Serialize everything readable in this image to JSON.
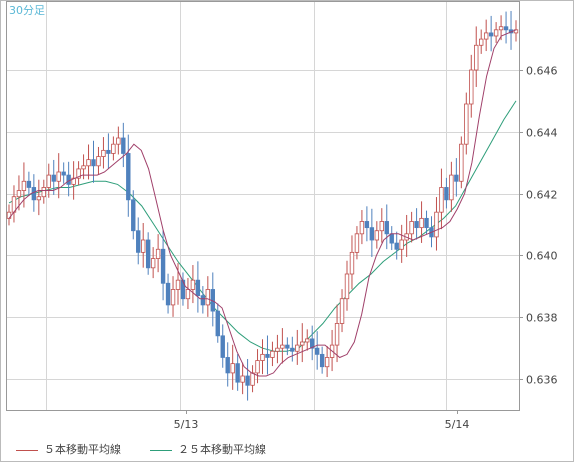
{
  "chart_data": {
    "type": "candlestick",
    "timeframe_label": "30分足",
    "x_tick_labels": [
      "5/13",
      "5/14"
    ],
    "y_ticks": [
      0.636,
      0.638,
      0.64,
      0.642,
      0.644,
      0.646
    ],
    "y_tick_labels": [
      "0.636",
      "0.638",
      "0.640",
      "0.642",
      "0.644",
      "0.646"
    ],
    "ylim": [
      0.635,
      0.6482
    ],
    "grid": true,
    "colors": {
      "up_candle_border": "#c0504d",
      "down_candle_fill": "#4f81bd",
      "ma5": "#a0406a",
      "ma25": "#2e9e7a",
      "grid": "#d6d6d6",
      "axis": "#999999"
    },
    "legend": [
      {
        "name": "５本移動平均線",
        "color": "#a0406a"
      },
      {
        "name": "２５本移動平均線",
        "color": "#2e9e7a"
      }
    ],
    "candle_close_path": [
      0.6414,
      0.6419,
      0.6421,
      0.6424,
      0.6422,
      0.6418,
      0.6419,
      0.6422,
      0.6426,
      0.6424,
      0.6427,
      0.6426,
      0.6423,
      0.6425,
      0.6428,
      0.6429,
      0.6431,
      0.6429,
      0.6432,
      0.6434,
      0.6433,
      0.6436,
      0.6438,
      0.6433,
      0.6418,
      0.6408,
      0.6401,
      0.6405,
      0.6396,
      0.6399,
      0.6402,
      0.6391,
      0.6384,
      0.6389,
      0.6392,
      0.6386,
      0.6389,
      0.6392,
      0.6387,
      0.6384,
      0.6389,
      0.6382,
      0.6374,
      0.6367,
      0.6362,
      0.6365,
      0.6359,
      0.6361,
      0.6358,
      0.6362,
      0.6366,
      0.6368,
      0.6367,
      0.6369,
      0.637,
      0.6371,
      0.637,
      0.6369,
      0.6371,
      0.6372,
      0.6373,
      0.637,
      0.6368,
      0.6364,
      0.6367,
      0.6371,
      0.6378,
      0.6386,
      0.6394,
      0.6401,
      0.6407,
      0.6411,
      0.6409,
      0.6405,
      0.6408,
      0.6411,
      0.6407,
      0.6404,
      0.6402,
      0.6405,
      0.6407,
      0.6411,
      0.6409,
      0.6412,
      0.6409,
      0.6406,
      0.6414,
      0.6422,
      0.6418,
      0.6426,
      0.6424,
      0.6436,
      0.6449,
      0.646,
      0.6468,
      0.647,
      0.6472,
      0.6471,
      0.6473,
      0.6474,
      0.6473,
      0.6472,
      0.6473
    ],
    "ma5": [
      0.6412,
      0.6415,
      0.6418,
      0.642,
      0.6421,
      0.6421,
      0.6421,
      0.6422,
      0.6424,
      0.6425,
      0.6426,
      0.6426,
      0.6426,
      0.6427,
      0.6429,
      0.6431,
      0.6433,
      0.6436,
      0.6434,
      0.6428,
      0.6418,
      0.6408,
      0.64,
      0.6395,
      0.639,
      0.6388,
      0.6386,
      0.6386,
      0.6385,
      0.6383,
      0.6376,
      0.6369,
      0.6364,
      0.6362,
      0.6361,
      0.6361,
      0.6362,
      0.6365,
      0.6367,
      0.6368,
      0.6369,
      0.637,
      0.6371,
      0.6371,
      0.6369,
      0.6367,
      0.6368,
      0.6372,
      0.6381,
      0.6393,
      0.64,
      0.6405,
      0.6407,
      0.6407,
      0.6406,
      0.6405,
      0.6406,
      0.6407,
      0.6408,
      0.6409,
      0.6411,
      0.6415,
      0.642,
      0.643,
      0.6445,
      0.6458,
      0.6467,
      0.6471,
      0.6472,
      0.6473
    ],
    "ma25": [
      0.6417,
      0.6419,
      0.642,
      0.6421,
      0.6422,
      0.6422,
      0.6423,
      0.6424,
      0.6424,
      0.6423,
      0.642,
      0.6416,
      0.641,
      0.6404,
      0.6398,
      0.6393,
      0.6388,
      0.6383,
      0.6379,
      0.6375,
      0.6372,
      0.637,
      0.6369,
      0.6369,
      0.637,
      0.6374,
      0.6378,
      0.6383,
      0.6387,
      0.6391,
      0.6394,
      0.6398,
      0.6401,
      0.6404,
      0.6406,
      0.6409,
      0.6412,
      0.6416,
      0.6423,
      0.643,
      0.6437,
      0.6444,
      0.645
    ]
  }
}
